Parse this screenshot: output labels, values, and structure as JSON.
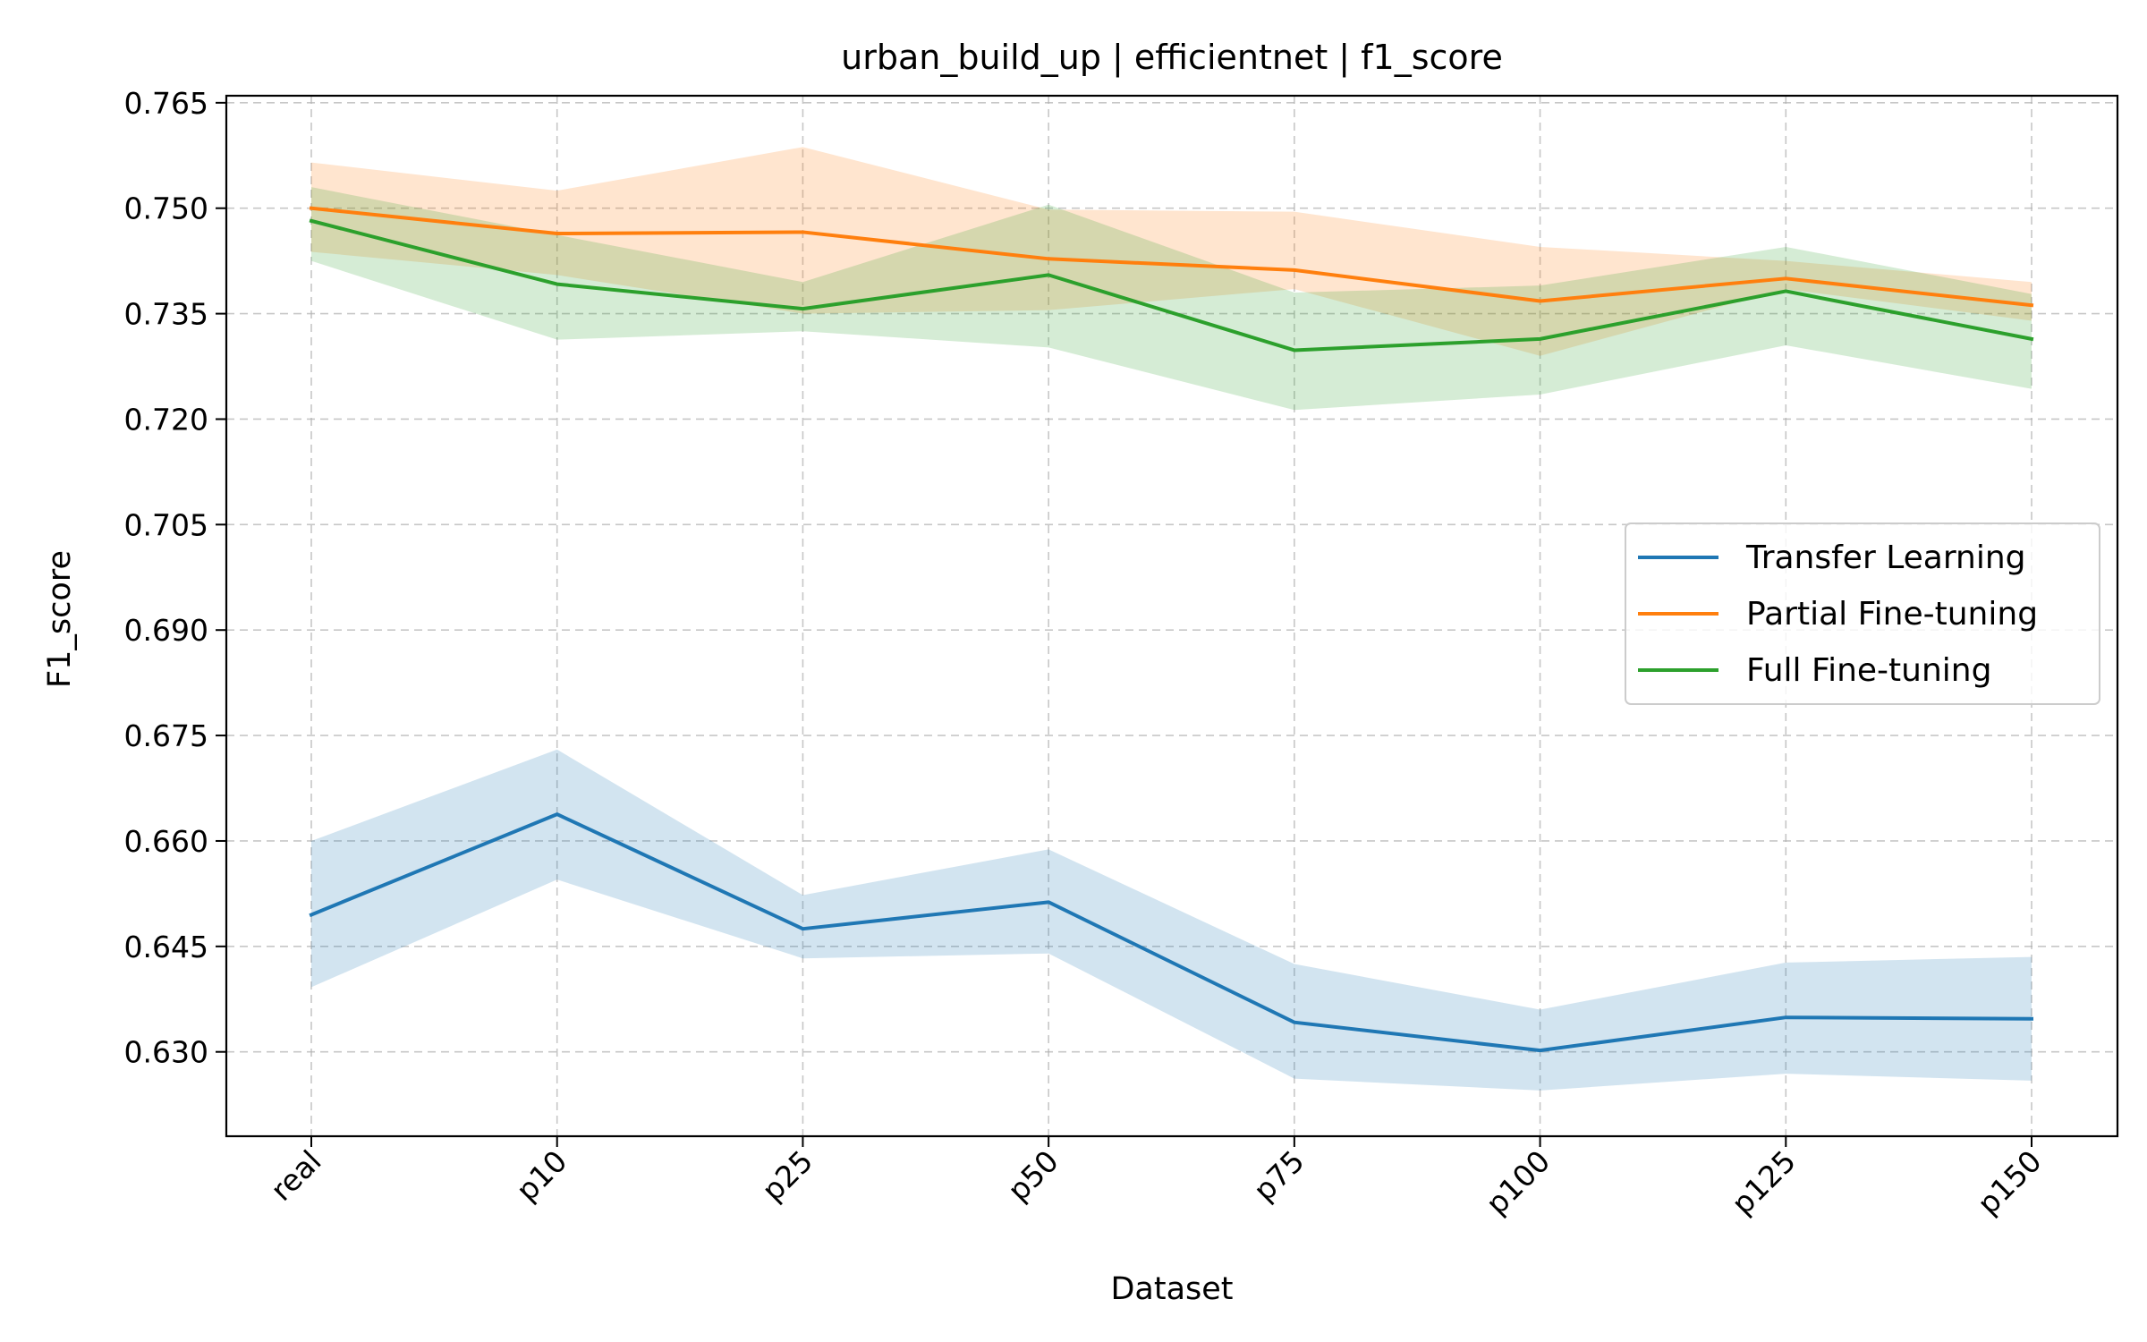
{
  "chart_data": {
    "type": "line",
    "title": "urban_build_up | efficientnet | f1_score",
    "xlabel": "Dataset",
    "ylabel": "F1_score",
    "categories": [
      "real",
      "p10",
      "p25",
      "p50",
      "p75",
      "p100",
      "p125",
      "p150"
    ],
    "yticks": [
      "0.630",
      "0.645",
      "0.660",
      "0.675",
      "0.690",
      "0.705",
      "0.720",
      "0.735",
      "0.750",
      "0.765"
    ],
    "ylim": [
      0.618,
      0.766
    ],
    "grid": true,
    "legend_position": "center-right",
    "series": [
      {
        "name": "Transfer Learning",
        "color": "#1f77b4",
        "values": [
          0.6495,
          0.6638,
          0.6475,
          0.6513,
          0.6342,
          0.6302,
          0.6349,
          0.6347
        ],
        "lower": [
          0.6392,
          0.6545,
          0.6433,
          0.644,
          0.6262,
          0.6245,
          0.6269,
          0.6259
        ],
        "upper": [
          0.66,
          0.673,
          0.6523,
          0.6588,
          0.6425,
          0.636,
          0.6427,
          0.6435
        ]
      },
      {
        "name": "Partial Fine-tuning",
        "color": "#ff7f0e",
        "values": [
          0.75,
          0.7464,
          0.7466,
          0.7428,
          0.7412,
          0.7368,
          0.74,
          0.7362
        ],
        "lower": [
          0.7438,
          0.7405,
          0.735,
          0.7355,
          0.7385,
          0.729,
          0.7385,
          0.734
        ],
        "upper": [
          0.7565,
          0.7525,
          0.7587,
          0.7498,
          0.7495,
          0.7445,
          0.7425,
          0.7395
        ]
      },
      {
        "name": "Full Fine-tuning",
        "color": "#2ca02c",
        "values": [
          0.7482,
          0.7392,
          0.7357,
          0.7405,
          0.7298,
          0.7314,
          0.7382,
          0.7314
        ],
        "lower": [
          0.7425,
          0.7313,
          0.7325,
          0.7302,
          0.7213,
          0.7235,
          0.7305,
          0.7243
        ],
        "upper": [
          0.753,
          0.7462,
          0.7395,
          0.7505,
          0.738,
          0.739,
          0.7445,
          0.7378
        ]
      }
    ]
  }
}
